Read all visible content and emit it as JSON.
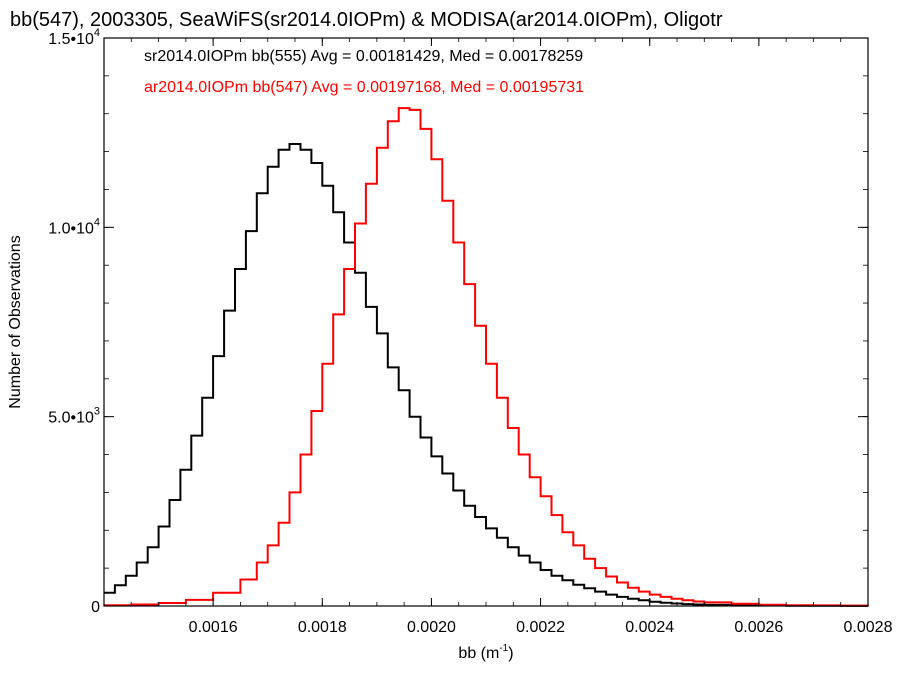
{
  "chart_data": {
    "type": "line",
    "title": "bb(547), 2003305, SeaWiFS(sr2014.0IOPm) & MODISA(ar2014.0IOPm), Oligotr",
    "xlabel": "bb (m",
    "xlabel_sup": "-1",
    "xlabel_close": ")",
    "ylabel": "Number of Observations",
    "xlim": [
      0.0014,
      0.0028
    ],
    "ylim": [
      0,
      15000
    ],
    "x_ticks": [
      {
        "value": 0.0016,
        "label": "0.0016"
      },
      {
        "value": 0.0018,
        "label": "0.0018"
      },
      {
        "value": 0.002,
        "label": "0.0020"
      },
      {
        "value": 0.0022,
        "label": "0.0022"
      },
      {
        "value": 0.0024,
        "label": "0.0024"
      },
      {
        "value": 0.0026,
        "label": "0.0026"
      },
      {
        "value": 0.0028,
        "label": "0.0028"
      }
    ],
    "y_ticks": [
      {
        "value": 0,
        "mant": "0",
        "exp": ""
      },
      {
        "value": 5000,
        "mant": "5.0•10",
        "exp": "3"
      },
      {
        "value": 10000,
        "mant": "1.0•10",
        "exp": "4"
      },
      {
        "value": 15000,
        "mant": "1.5•10",
        "exp": "4"
      }
    ],
    "series": [
      {
        "name": "sr2014.0IOPm bb(555) Avg = 0.00181429, Med = 0.00178259",
        "color": "#000000",
        "x": [
          0.0014,
          0.00142,
          0.00144,
          0.00146,
          0.00148,
          0.0015,
          0.00152,
          0.00154,
          0.00156,
          0.00158,
          0.0016,
          0.00162,
          0.00164,
          0.00166,
          0.00168,
          0.0017,
          0.00172,
          0.00174,
          0.00176,
          0.00178,
          0.0018,
          0.00182,
          0.00184,
          0.00186,
          0.00188,
          0.0019,
          0.00192,
          0.00194,
          0.00196,
          0.00198,
          0.002,
          0.00202,
          0.00204,
          0.00206,
          0.00208,
          0.0021,
          0.00212,
          0.00214,
          0.00216,
          0.00218,
          0.0022,
          0.00222,
          0.00224,
          0.00226,
          0.00228,
          0.0023,
          0.00232,
          0.00234,
          0.00236,
          0.00238,
          0.0024,
          0.00242,
          0.00244,
          0.00246,
          0.00248,
          0.0025,
          0.00255,
          0.0026,
          0.00265,
          0.0027,
          0.00275,
          0.0028
        ],
        "y": [
          350,
          550,
          800,
          1150,
          1550,
          2100,
          2800,
          3600,
          4500,
          5500,
          6600,
          7800,
          8900,
          9900,
          10900,
          11600,
          12050,
          12200,
          12050,
          11700,
          11100,
          10400,
          9600,
          8800,
          7900,
          7200,
          6300,
          5700,
          5000,
          4450,
          3950,
          3500,
          3050,
          2650,
          2350,
          2050,
          1800,
          1550,
          1330,
          1150,
          950,
          800,
          680,
          560,
          470,
          380,
          300,
          240,
          190,
          150,
          110,
          85,
          65,
          50,
          40,
          30,
          20,
          12,
          8,
          5,
          3,
          2
        ]
      },
      {
        "name": "ar2014.0IOPm bb(547) Avg = 0.00197168, Med = 0.00195731",
        "color": "#ff0000",
        "x": [
          0.0014,
          0.00145,
          0.0015,
          0.00155,
          0.0016,
          0.00165,
          0.00168,
          0.0017,
          0.00172,
          0.00174,
          0.00176,
          0.00178,
          0.0018,
          0.00182,
          0.00184,
          0.00186,
          0.00188,
          0.0019,
          0.00192,
          0.00194,
          0.00196,
          0.00198,
          0.002,
          0.00202,
          0.00204,
          0.00206,
          0.00208,
          0.0021,
          0.00212,
          0.00214,
          0.00216,
          0.00218,
          0.0022,
          0.00222,
          0.00224,
          0.00226,
          0.00228,
          0.0023,
          0.00232,
          0.00234,
          0.00236,
          0.00238,
          0.0024,
          0.00242,
          0.00244,
          0.00246,
          0.00248,
          0.0025,
          0.00255,
          0.0026,
          0.00265,
          0.0027,
          0.00275,
          0.0028
        ],
        "y": [
          20,
          40,
          80,
          160,
          350,
          700,
          1150,
          1600,
          2200,
          3000,
          4000,
          5150,
          6400,
          7700,
          8900,
          10100,
          11150,
          12100,
          12800,
          13150,
          13100,
          12600,
          11800,
          10700,
          9600,
          8500,
          7400,
          6400,
          5500,
          4700,
          4000,
          3400,
          2900,
          2400,
          1950,
          1600,
          1250,
          1000,
          780,
          620,
          480,
          380,
          300,
          240,
          190,
          150,
          120,
          95,
          60,
          35,
          22,
          15,
          10,
          6
        ]
      }
    ]
  }
}
